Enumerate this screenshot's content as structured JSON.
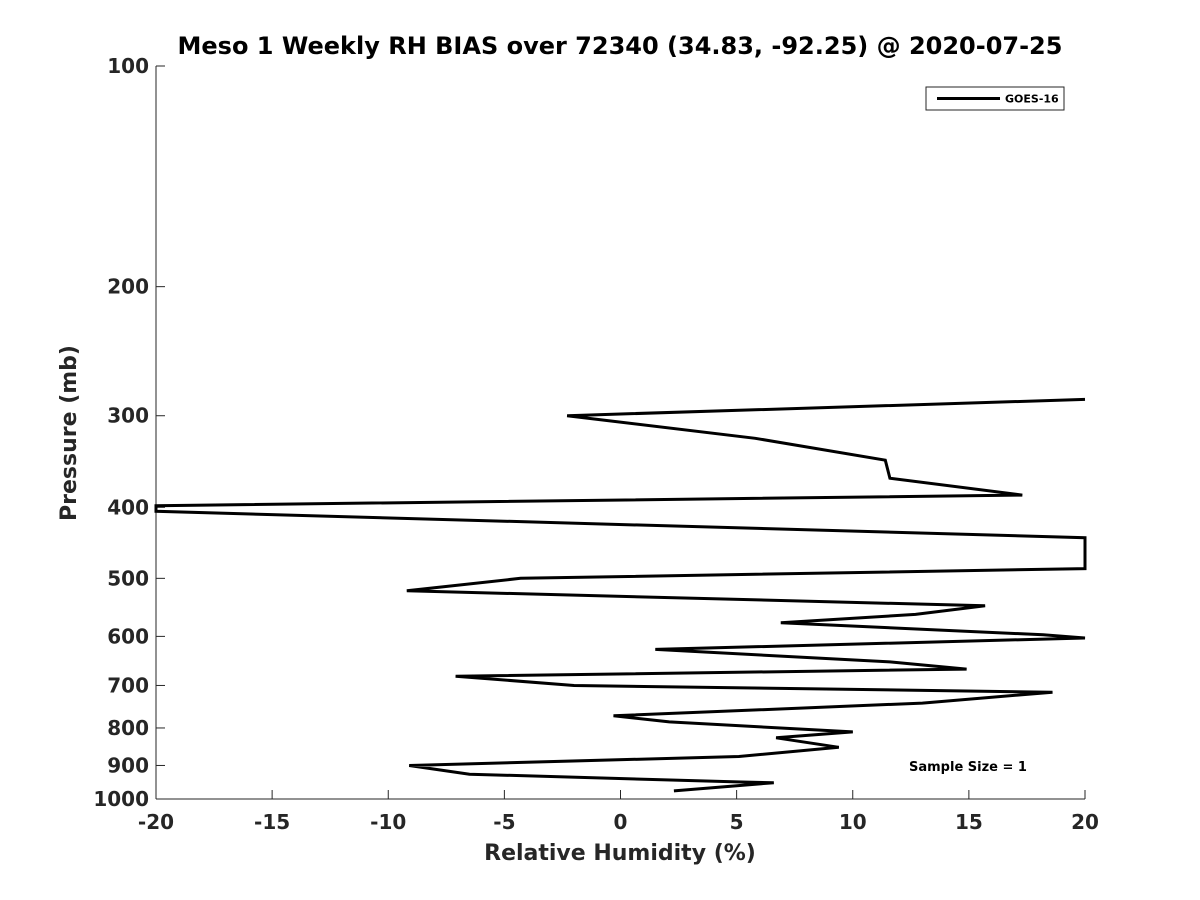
{
  "chart_data": {
    "type": "line",
    "title": "Meso 1 Weekly RH BIAS over 72340 (34.83, -92.25) @ 2020-07-25",
    "xlabel": "Relative Humidity (%)",
    "ylabel": "Pressure (mb)",
    "xlim": [
      -20,
      20
    ],
    "ylim": [
      100,
      1000
    ],
    "y_scale": "log",
    "y_reversed": true,
    "grid": false,
    "legend_position": "top-right",
    "annotation": "Sample Size = 1",
    "x_ticks": [
      "-20",
      "-15",
      "-10",
      "-5",
      "0",
      "5",
      "10",
      "15",
      "20"
    ],
    "y_ticks": [
      "100",
      "200",
      "300",
      "400",
      "500",
      "600",
      "700",
      "800",
      "900",
      "1000"
    ],
    "series": [
      {
        "name": "GOES-16",
        "color": "#000000",
        "points": [
          {
            "x": 2.3,
            "p": 975
          },
          {
            "x": 6.6,
            "p": 950
          },
          {
            "x": 5.2,
            "p": 948
          },
          {
            "x": -6.5,
            "p": 925
          },
          {
            "x": -9.1,
            "p": 900
          },
          {
            "x": 5.1,
            "p": 875
          },
          {
            "x": 9.4,
            "p": 850
          },
          {
            "x": 6.7,
            "p": 825
          },
          {
            "x": 10.0,
            "p": 810
          },
          {
            "x": 2.1,
            "p": 785
          },
          {
            "x": -0.3,
            "p": 770
          },
          {
            "x": 13.0,
            "p": 740
          },
          {
            "x": 18.6,
            "p": 715
          },
          {
            "x": -2.0,
            "p": 700
          },
          {
            "x": -7.1,
            "p": 680
          },
          {
            "x": 14.9,
            "p": 665
          },
          {
            "x": 11.6,
            "p": 650
          },
          {
            "x": 1.5,
            "p": 625
          },
          {
            "x": 20.0,
            "p": 603
          },
          {
            "x": 18.2,
            "p": 597
          },
          {
            "x": 6.9,
            "p": 575
          },
          {
            "x": 12.7,
            "p": 560
          },
          {
            "x": 15.7,
            "p": 545
          },
          {
            "x": -9.2,
            "p": 520
          },
          {
            "x": -4.3,
            "p": 500
          },
          {
            "x": 20.0,
            "p": 485
          },
          {
            "x": 20.0,
            "p": 440
          },
          {
            "x": -20.0,
            "p": 405
          },
          {
            "x": -20.0,
            "p": 398
          },
          {
            "x": 17.3,
            "p": 385
          },
          {
            "x": 11.6,
            "p": 365
          },
          {
            "x": 11.4,
            "p": 345
          },
          {
            "x": 5.8,
            "p": 322
          },
          {
            "x": -2.3,
            "p": 300
          },
          {
            "x": 20.0,
            "p": 285
          }
        ]
      }
    ]
  }
}
